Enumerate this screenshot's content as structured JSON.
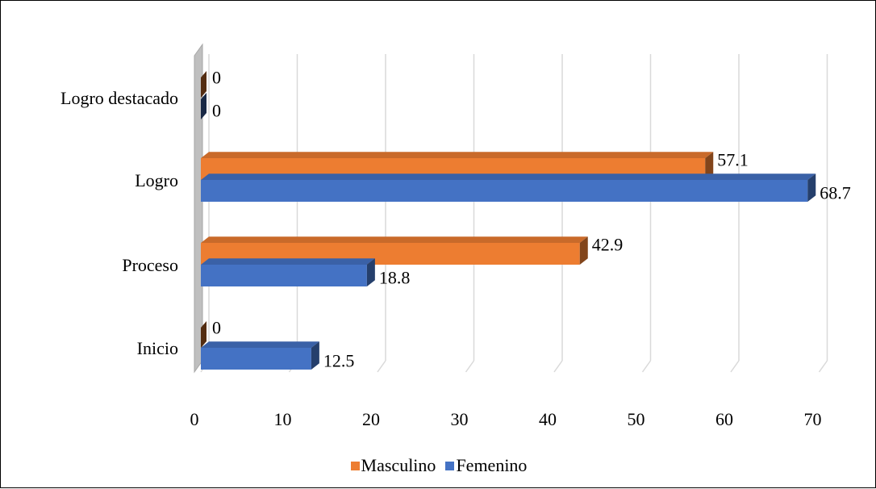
{
  "chart_data": {
    "type": "bar",
    "orientation": "horizontal",
    "style": "3d",
    "categories": [
      "Inicio",
      "Proceso",
      "Logro",
      "Logro destacado"
    ],
    "series": [
      {
        "name": "Masculino",
        "values": [
          0,
          42.9,
          57.1,
          0
        ],
        "color": "#ED7D31"
      },
      {
        "name": "Femenino",
        "values": [
          12.5,
          18.8,
          68.7,
          0
        ],
        "color": "#4472C4"
      }
    ],
    "data_labels": {
      "Masculino": [
        "0",
        "42.9",
        "57.1",
        "0"
      ],
      "Femenino": [
        "12.5",
        "18.8",
        "68.7",
        "0"
      ]
    },
    "xticks": [
      "0",
      "10",
      "20",
      "30",
      "40",
      "50",
      "60",
      "70"
    ],
    "xlim": [
      0,
      70
    ],
    "grid": true,
    "legend_position": "bottom",
    "title": "",
    "xlabel": "",
    "ylabel": ""
  }
}
